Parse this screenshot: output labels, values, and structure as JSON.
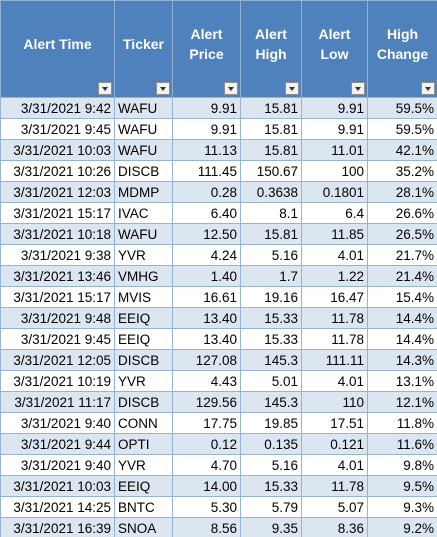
{
  "headers": {
    "alert_time": "Alert Time",
    "ticker": "Ticker",
    "alert_price": "Alert Price",
    "alert_high": "Alert High",
    "alert_low": "Alert Low",
    "high_change": "High Change"
  },
  "rows": [
    {
      "time": "3/31/2021 9:42",
      "ticker": "WAFU",
      "price": "9.91",
      "high": "15.81",
      "low": "9.91",
      "change": "59.5%"
    },
    {
      "time": "3/31/2021 9:45",
      "ticker": "WAFU",
      "price": "9.91",
      "high": "15.81",
      "low": "9.91",
      "change": "59.5%"
    },
    {
      "time": "3/31/2021 10:03",
      "ticker": "WAFU",
      "price": "11.13",
      "high": "15.81",
      "low": "11.01",
      "change": "42.1%"
    },
    {
      "time": "3/31/2021 10:26",
      "ticker": "DISCB",
      "price": "111.45",
      "high": "150.67",
      "low": "100",
      "change": "35.2%"
    },
    {
      "time": "3/31/2021 12:03",
      "ticker": "MDMP",
      "price": "0.28",
      "high": "0.3638",
      "low": "0.1801",
      "change": "28.1%"
    },
    {
      "time": "3/31/2021 15:17",
      "ticker": "IVAC",
      "price": "6.40",
      "high": "8.1",
      "low": "6.4",
      "change": "26.6%"
    },
    {
      "time": "3/31/2021 10:18",
      "ticker": "WAFU",
      "price": "12.50",
      "high": "15.81",
      "low": "11.85",
      "change": "26.5%"
    },
    {
      "time": "3/31/2021 9:38",
      "ticker": "YVR",
      "price": "4.24",
      "high": "5.16",
      "low": "4.01",
      "change": "21.7%"
    },
    {
      "time": "3/31/2021 13:46",
      "ticker": "VMHG",
      "price": "1.40",
      "high": "1.7",
      "low": "1.22",
      "change": "21.4%"
    },
    {
      "time": "3/31/2021 15:17",
      "ticker": "MVIS",
      "price": "16.61",
      "high": "19.16",
      "low": "16.47",
      "change": "15.4%"
    },
    {
      "time": "3/31/2021 9:48",
      "ticker": "EEIQ",
      "price": "13.40",
      "high": "15.33",
      "low": "11.78",
      "change": "14.4%"
    },
    {
      "time": "3/31/2021 9:45",
      "ticker": "EEIQ",
      "price": "13.40",
      "high": "15.33",
      "low": "11.78",
      "change": "14.4%"
    },
    {
      "time": "3/31/2021 12:05",
      "ticker": "DISCB",
      "price": "127.08",
      "high": "145.3",
      "low": "111.11",
      "change": "14.3%"
    },
    {
      "time": "3/31/2021 10:19",
      "ticker": "YVR",
      "price": "4.43",
      "high": "5.01",
      "low": "4.01",
      "change": "13.1%"
    },
    {
      "time": "3/31/2021 11:17",
      "ticker": "DISCB",
      "price": "129.56",
      "high": "145.3",
      "low": "110",
      "change": "12.1%"
    },
    {
      "time": "3/31/2021 9:40",
      "ticker": "CONN",
      "price": "17.75",
      "high": "19.85",
      "low": "17.51",
      "change": "11.8%"
    },
    {
      "time": "3/31/2021 9:44",
      "ticker": "OPTI",
      "price": "0.12",
      "high": "0.135",
      "low": "0.121",
      "change": "11.6%"
    },
    {
      "time": "3/31/2021 9:40",
      "ticker": "YVR",
      "price": "4.70",
      "high": "5.16",
      "low": "4.01",
      "change": "9.8%"
    },
    {
      "time": "3/31/2021 10:03",
      "ticker": "EEIQ",
      "price": "14.00",
      "high": "15.33",
      "low": "11.78",
      "change": "9.5%"
    },
    {
      "time": "3/31/2021 14:25",
      "ticker": "BNTC",
      "price": "5.30",
      "high": "5.79",
      "low": "5.07",
      "change": "9.3%"
    },
    {
      "time": "3/31/2021 16:39",
      "ticker": "SNOA",
      "price": "8.56",
      "high": "9.35",
      "low": "8.36",
      "change": "9.2%"
    }
  ],
  "icons": {
    "filter": "filter-dropdown-icon"
  },
  "colors": {
    "header_bg": "#4f81bd",
    "header_text": "#ffffff",
    "band_row": "#dce6f1",
    "plain_row": "#ffffff",
    "grid_line": "#95b3d7"
  }
}
